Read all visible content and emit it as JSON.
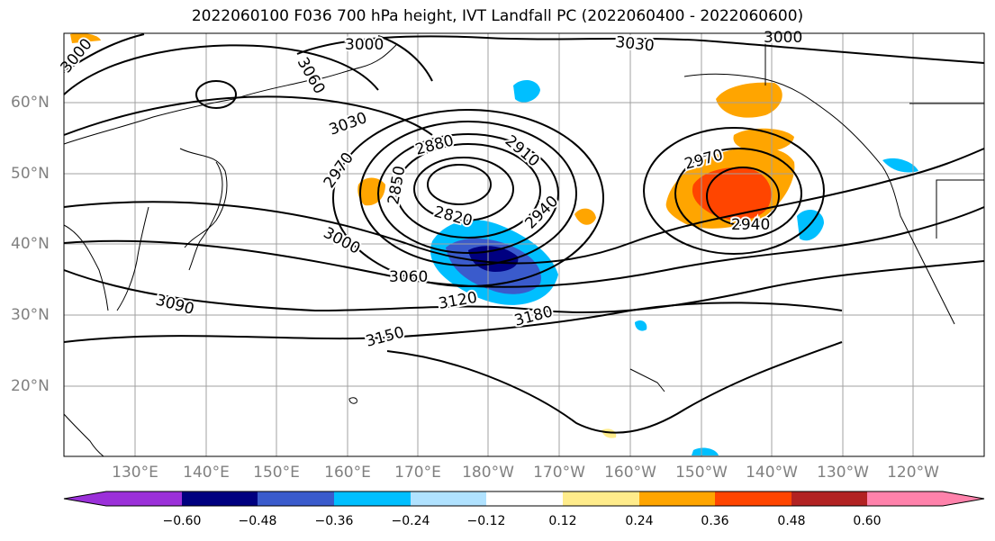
{
  "title": "2022060100 F036 700 hPa height, IVT Landfall PC (2022060400 - 2022060600)",
  "lat_labels": [
    "60°N",
    "50°N",
    "40°N",
    "30°N",
    "20°N"
  ],
  "lon_labels": [
    "130°E",
    "140°E",
    "150°E",
    "160°E",
    "170°E",
    "180°W",
    "170°W",
    "160°W",
    "150°W",
    "140°W",
    "130°W",
    "120°W"
  ],
  "contour_labels": [
    "3000",
    "3030",
    "3060",
    "3000",
    "3030",
    "2970",
    "2880",
    "2910",
    "2850",
    "2820",
    "2940",
    "2970",
    "2940",
    "3000",
    "3060",
    "3090",
    "3120",
    "3150",
    "3180",
    "3000"
  ],
  "colorbar": {
    "ticks": [
      "−0.60",
      "−0.48",
      "−0.36",
      "−0.24",
      "−0.12",
      "0.12",
      "0.24",
      "0.36",
      "0.48",
      "0.60"
    ],
    "colors": [
      "#9b30d9",
      "#000080",
      "#3a5bcc",
      "#00bfff",
      "#b0e2ff",
      "#ffffff",
      "#ffec8b",
      "#ffa500",
      "#ff4500",
      "#b22222",
      "#ff82ab"
    ]
  },
  "colors": {
    "grid": "#a0a0a0",
    "contour": "#000000",
    "tick_label": "#808080"
  }
}
